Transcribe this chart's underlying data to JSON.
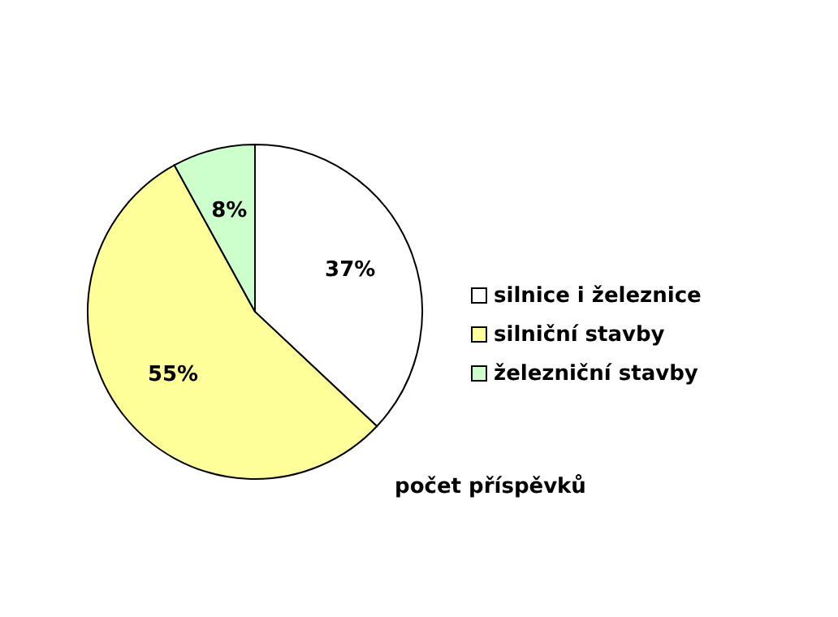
{
  "chart_data": {
    "type": "pie",
    "title": "počet příspěvků",
    "categories": [
      "silnice i železnice",
      "silniční stavby",
      "železniční stavby"
    ],
    "values": [
      37,
      55,
      8
    ],
    "colors": [
      "#ffffff",
      "#ffff99",
      "#ccffcc"
    ],
    "value_labels": [
      "37%",
      "55%",
      "8%"
    ],
    "legend": "right"
  }
}
